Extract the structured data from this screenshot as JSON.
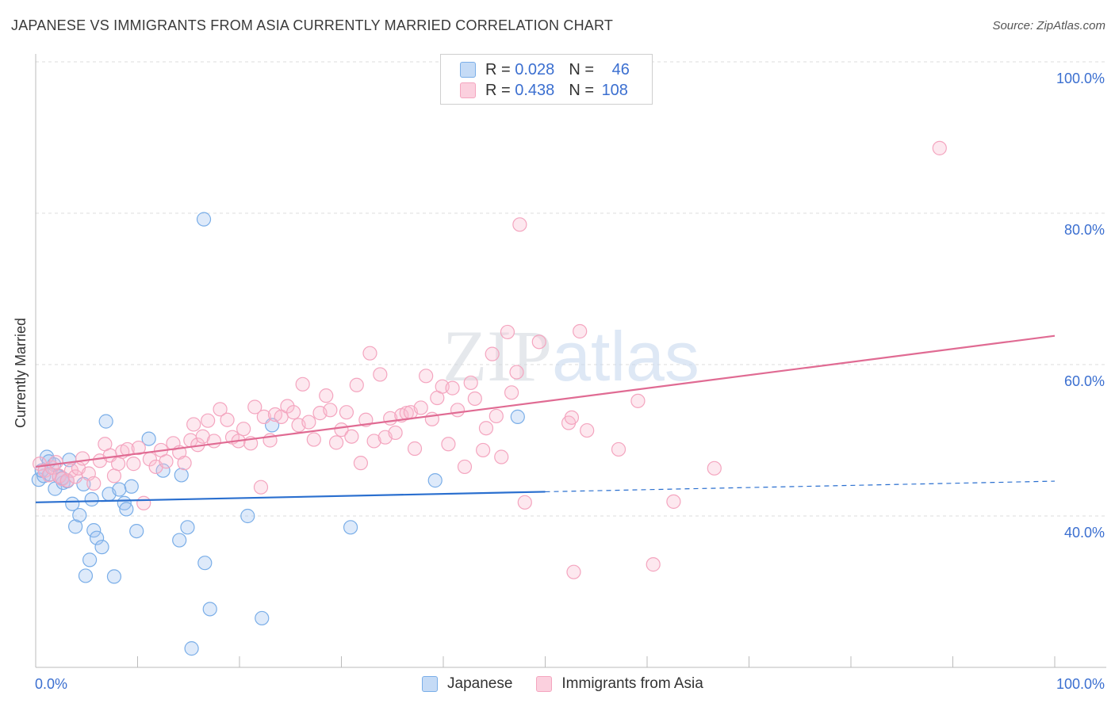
{
  "header": {
    "title": "JAPANESE VS IMMIGRANTS FROM ASIA CURRENTLY MARRIED CORRELATION CHART",
    "source": "Source: ZipAtlas.com"
  },
  "watermark": "ZIPatlas",
  "legend_top": {
    "rows": [
      {
        "r_label": "R =",
        "r_value": "0.028",
        "n_label": "N =",
        "n_value": "46",
        "color": "#7aaee8"
      },
      {
        "r_label": "R =",
        "r_value": "0.438",
        "n_label": "N =",
        "n_value": "108",
        "color": "#f4a5bf"
      }
    ]
  },
  "legend_bottom": {
    "items": [
      {
        "label": "Japanese",
        "color": "#7aaee8"
      },
      {
        "label": "Immigrants from Asia",
        "color": "#f4a5bf"
      }
    ]
  },
  "chart_data": {
    "type": "scatter",
    "title": "JAPANESE VS IMMIGRANTS FROM ASIA CURRENTLY MARRIED CORRELATION CHART",
    "xlabel": "",
    "ylabel": "Currently Married",
    "xlim": [
      0,
      100
    ],
    "ylim": [
      20,
      100
    ],
    "x_tick_labels": [
      "0.0%",
      "100.0%"
    ],
    "y_ticks": [
      40,
      60,
      80,
      100
    ],
    "y_tick_labels": [
      "40.0%",
      "60.0%",
      "80.0%",
      "100.0%"
    ],
    "grid": true,
    "series": [
      {
        "name": "Japanese",
        "color": "#7aaee8",
        "trend_color": "#2a6fcf",
        "trend": {
          "x0": 0,
          "y0": 41.8,
          "x1": 50,
          "y1": 43.2,
          "x_dash_end": 100,
          "y_dash_end": 44.6
        },
        "points": [
          [
            0.3,
            44.8
          ],
          [
            0.8,
            45.3
          ],
          [
            1.1,
            47.8
          ],
          [
            1.4,
            45.5
          ],
          [
            1.8,
            46.8
          ],
          [
            1.9,
            43.6
          ],
          [
            2.3,
            45.2
          ],
          [
            2.7,
            44.4
          ],
          [
            3.1,
            44.6
          ],
          [
            3.3,
            47.4
          ],
          [
            3.6,
            41.6
          ],
          [
            3.9,
            38.6
          ],
          [
            4.3,
            40.1
          ],
          [
            4.7,
            44.2
          ],
          [
            4.9,
            32.1
          ],
          [
            5.3,
            34.2
          ],
          [
            5.5,
            42.2
          ],
          [
            5.7,
            38.1
          ],
          [
            6.0,
            37.1
          ],
          [
            6.5,
            35.9
          ],
          [
            6.9,
            52.5
          ],
          [
            7.2,
            42.9
          ],
          [
            7.7,
            32.0
          ],
          [
            8.2,
            43.5
          ],
          [
            8.7,
            41.7
          ],
          [
            8.9,
            40.9
          ],
          [
            9.4,
            43.9
          ],
          [
            9.9,
            38.0
          ],
          [
            11.1,
            50.2
          ],
          [
            12.5,
            46.0
          ],
          [
            14.1,
            36.8
          ],
          [
            14.3,
            45.4
          ],
          [
            14.9,
            38.5
          ],
          [
            15.3,
            22.5
          ],
          [
            16.5,
            79.2
          ],
          [
            16.6,
            33.8
          ],
          [
            17.1,
            27.7
          ],
          [
            20.8,
            40.0
          ],
          [
            22.2,
            26.5
          ],
          [
            23.2,
            52.0
          ],
          [
            30.9,
            38.5
          ],
          [
            39.2,
            44.7
          ],
          [
            47.3,
            53.1
          ],
          [
            2.6,
            45.0
          ],
          [
            1.3,
            47.2
          ],
          [
            0.6,
            46.0
          ]
        ]
      },
      {
        "name": "Immigrants from Asia",
        "color": "#f4a5bf",
        "trend_color": "#e06b93",
        "trend": {
          "x0": 0,
          "y0": 46.5,
          "x1": 100,
          "y1": 63.8
        },
        "points": [
          [
            0.4,
            46.9
          ],
          [
            0.9,
            46.0
          ],
          [
            1.3,
            45.4
          ],
          [
            1.6,
            46.4
          ],
          [
            2.0,
            47.1
          ],
          [
            2.3,
            45.3
          ],
          [
            2.6,
            44.9
          ],
          [
            3.1,
            44.7
          ],
          [
            3.5,
            46.0
          ],
          [
            3.9,
            45.2
          ],
          [
            4.2,
            46.3
          ],
          [
            4.6,
            47.6
          ],
          [
            5.2,
            45.6
          ],
          [
            5.7,
            44.3
          ],
          [
            6.3,
            47.3
          ],
          [
            6.8,
            49.5
          ],
          [
            7.3,
            48.0
          ],
          [
            7.7,
            45.3
          ],
          [
            8.1,
            46.9
          ],
          [
            8.5,
            48.5
          ],
          [
            9.0,
            48.8
          ],
          [
            9.6,
            46.9
          ],
          [
            10.1,
            49.0
          ],
          [
            10.6,
            41.7
          ],
          [
            11.2,
            47.5
          ],
          [
            11.8,
            46.5
          ],
          [
            12.3,
            48.7
          ],
          [
            12.8,
            47.2
          ],
          [
            13.5,
            49.6
          ],
          [
            14.1,
            48.4
          ],
          [
            14.6,
            47.0
          ],
          [
            15.2,
            50.0
          ],
          [
            15.5,
            52.1
          ],
          [
            15.9,
            49.4
          ],
          [
            16.4,
            50.5
          ],
          [
            16.9,
            52.6
          ],
          [
            17.5,
            49.9
          ],
          [
            18.1,
            54.1
          ],
          [
            18.8,
            52.7
          ],
          [
            19.3,
            50.4
          ],
          [
            19.9,
            49.9
          ],
          [
            20.4,
            51.5
          ],
          [
            21.1,
            49.6
          ],
          [
            21.5,
            54.4
          ],
          [
            22.1,
            43.8
          ],
          [
            22.4,
            53.1
          ],
          [
            23.0,
            50.0
          ],
          [
            23.5,
            53.4
          ],
          [
            24.1,
            53.1
          ],
          [
            24.7,
            54.5
          ],
          [
            25.3,
            53.7
          ],
          [
            25.8,
            52.0
          ],
          [
            26.2,
            57.4
          ],
          [
            26.8,
            52.4
          ],
          [
            27.3,
            50.1
          ],
          [
            27.9,
            53.6
          ],
          [
            28.5,
            55.9
          ],
          [
            28.9,
            54.0
          ],
          [
            29.5,
            49.7
          ],
          [
            30.0,
            51.4
          ],
          [
            30.5,
            53.7
          ],
          [
            31.0,
            50.5
          ],
          [
            31.5,
            57.3
          ],
          [
            31.9,
            47.0
          ],
          [
            32.4,
            52.7
          ],
          [
            32.8,
            61.5
          ],
          [
            33.2,
            49.9
          ],
          [
            33.8,
            58.7
          ],
          [
            34.3,
            50.4
          ],
          [
            34.8,
            52.9
          ],
          [
            35.3,
            51.0
          ],
          [
            35.9,
            53.3
          ],
          [
            36.4,
            53.6
          ],
          [
            36.8,
            53.7
          ],
          [
            37.2,
            48.9
          ],
          [
            37.8,
            54.3
          ],
          [
            38.3,
            58.5
          ],
          [
            38.9,
            52.8
          ],
          [
            39.4,
            55.6
          ],
          [
            39.9,
            57.1
          ],
          [
            40.5,
            49.5
          ],
          [
            40.9,
            56.9
          ],
          [
            41.4,
            54.0
          ],
          [
            42.1,
            46.5
          ],
          [
            42.7,
            57.6
          ],
          [
            43.1,
            55.5
          ],
          [
            43.9,
            48.7
          ],
          [
            44.2,
            51.6
          ],
          [
            44.8,
            61.4
          ],
          [
            45.2,
            53.2
          ],
          [
            45.7,
            47.8
          ],
          [
            46.3,
            64.3
          ],
          [
            46.7,
            56.3
          ],
          [
            47.2,
            59.0
          ],
          [
            47.5,
            78.5
          ],
          [
            48.0,
            41.8
          ],
          [
            49.4,
            63.0
          ],
          [
            52.3,
            52.3
          ],
          [
            52.6,
            53.0
          ],
          [
            52.8,
            32.6
          ],
          [
            53.4,
            64.4
          ],
          [
            54.1,
            51.3
          ],
          [
            57.2,
            48.8
          ],
          [
            59.1,
            55.2
          ],
          [
            60.6,
            33.6
          ],
          [
            62.6,
            41.9
          ],
          [
            66.6,
            46.3
          ],
          [
            88.7,
            88.6
          ]
        ]
      }
    ]
  }
}
